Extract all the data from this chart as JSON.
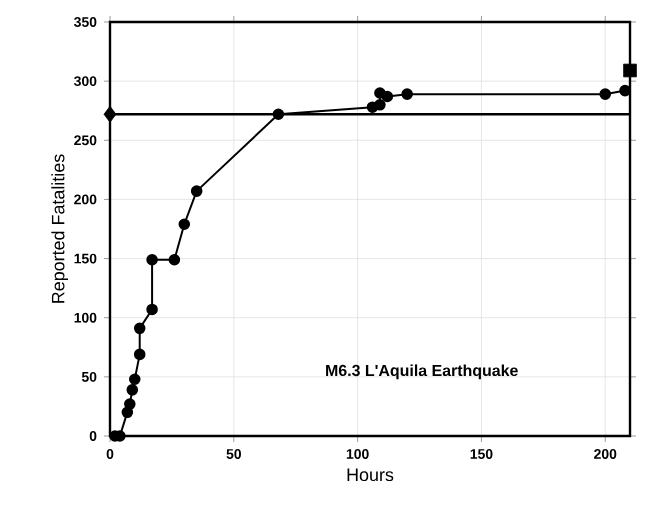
{
  "chart_data": {
    "type": "line",
    "xlabel": "Hours",
    "ylabel": "Reported Fatalities",
    "annotations": [
      "M6.3 L'Aquila Earthquake"
    ],
    "series": [
      {
        "color": "#000000",
        "marker": "circle",
        "x": [
          2,
          4,
          7,
          8,
          9,
          10,
          12,
          12,
          17,
          17,
          26,
          30,
          35,
          68,
          106,
          109,
          109,
          112,
          120,
          200,
          208
        ],
        "values": [
          0,
          0,
          20,
          27,
          39,
          48,
          69,
          91,
          107,
          149,
          149,
          179,
          207,
          272,
          278,
          280,
          290,
          287,
          289,
          289,
          292
        ]
      },
      {
        "type": "scatter",
        "color": "#000000",
        "marker": "diamond",
        "x": [
          0
        ],
        "values": [
          272
        ]
      },
      {
        "type": "scatter",
        "color": "#000000",
        "marker": "square",
        "x": [
          210
        ],
        "values": [
          309
        ]
      }
    ],
    "ref_lines": [
      {
        "axis": "y",
        "value": 272,
        "color": "#000000"
      }
    ],
    "xlim": [
      0,
      210
    ],
    "ylim": [
      0,
      350
    ],
    "xticks": [
      0,
      50,
      100,
      150,
      200
    ],
    "yticks": [
      0,
      50,
      100,
      150,
      200,
      250,
      300,
      350
    ],
    "grid": true
  }
}
